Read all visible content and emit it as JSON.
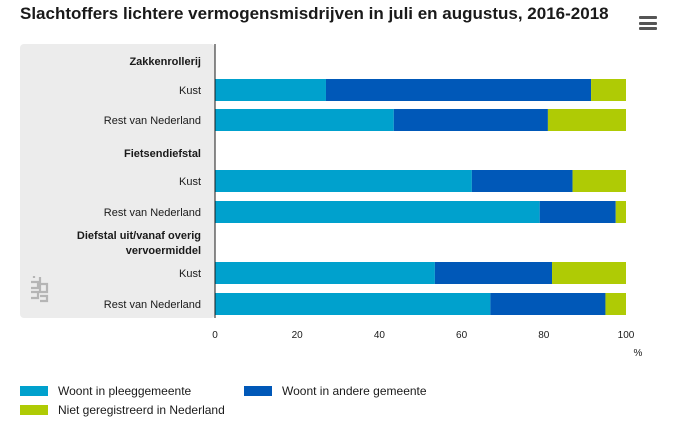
{
  "header": {
    "title": "Slachtoffers lichtere vermogensmisdrijven in juli en augustus, 2016-2018"
  },
  "toolbar": {
    "menu_icon": "hamburger-menu-icon"
  },
  "colors": {
    "woont_in_pleeggemeente": "#00a1cd",
    "woont_in_andere_gemeente": "#0058b8",
    "niet_geregistreerd": "#afcb05",
    "panel": "#ececec"
  },
  "chart_data": {
    "type": "bar",
    "orientation": "horizontal",
    "stacked": true,
    "title": "Slachtoffers lichtere vermogensmisdrijven in juli en augustus, 2016-2018",
    "unit": "%",
    "xlim": [
      0,
      100
    ],
    "x_ticks": [
      0,
      20,
      40,
      60,
      80,
      100
    ],
    "grid": false,
    "legend_position": "bottom",
    "groups": [
      {
        "name": "Zakkenrollerij",
        "name_lines": [
          "Zakkenrollerij"
        ],
        "categories": [
          "Kust",
          "Rest van Nederland"
        ]
      },
      {
        "name": "Fietsendiefstal",
        "name_lines": [
          "Fietsendiefstal"
        ],
        "categories": [
          "Kust",
          "Rest van Nederland"
        ]
      },
      {
        "name": "Diefstal uit/vanaf overig vervoermiddel",
        "name_lines": [
          "Diefstal uit/vanaf overig",
          "vervoermiddel"
        ],
        "categories": [
          "Kust",
          "Rest van Nederland"
        ]
      }
    ],
    "series": [
      {
        "name": "Woont in pleeggemeente",
        "color": "#00a1cd",
        "values": [
          27,
          43.5,
          62.5,
          79,
          53.5,
          67
        ]
      },
      {
        "name": "Woont in andere gemeente",
        "color": "#0058b8",
        "values": [
          64.5,
          37.5,
          24.5,
          18.5,
          28.5,
          28
        ]
      },
      {
        "name": "Niet geregistreerd in Nederland",
        "color": "#afcb05",
        "values": [
          8.5,
          19,
          13,
          2.5,
          18,
          5
        ]
      }
    ]
  }
}
